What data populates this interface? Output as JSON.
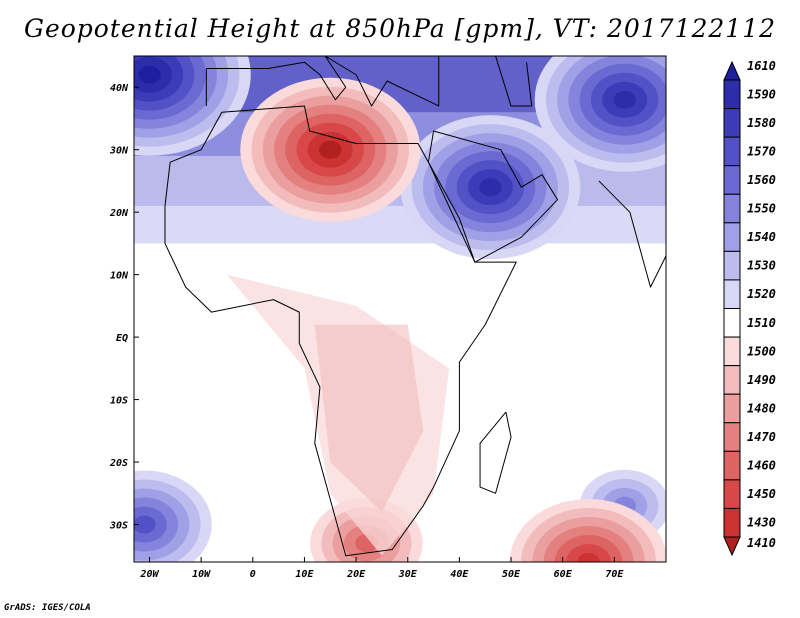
{
  "title": "Geopotential Height at 850hPa [gpm], VT: 2017122112",
  "credit": "GrADS: IGES/COLA",
  "map": {
    "variable": "Geopotential Height at 850hPa",
    "units": "gpm",
    "valid_time": "2017122112",
    "lon_range": [
      -23,
      80
    ],
    "lat_range": [
      -36,
      45
    ],
    "x_ticks": [
      {
        "lon": -20,
        "label": "20W"
      },
      {
        "lon": -10,
        "label": "10W"
      },
      {
        "lon": 0,
        "label": "0"
      },
      {
        "lon": 10,
        "label": "10E"
      },
      {
        "lon": 20,
        "label": "20E"
      },
      {
        "lon": 30,
        "label": "30E"
      },
      {
        "lon": 40,
        "label": "40E"
      },
      {
        "lon": 50,
        "label": "50E"
      },
      {
        "lon": 60,
        "label": "60E"
      },
      {
        "lon": 70,
        "label": "70E"
      }
    ],
    "y_ticks": [
      {
        "lat": 40,
        "label": "40N"
      },
      {
        "lat": 30,
        "label": "30N"
      },
      {
        "lat": 20,
        "label": "20N"
      },
      {
        "lat": 10,
        "label": "10N"
      },
      {
        "lat": 0,
        "label": "EQ"
      },
      {
        "lat": -10,
        "label": "10S"
      },
      {
        "lat": -20,
        "label": "20S"
      },
      {
        "lat": -30,
        "label": "30S"
      }
    ]
  },
  "colorbar": {
    "levels": [
      {
        "label": "1610",
        "color": "#1e1ea0"
      },
      {
        "label": "1590",
        "color": "#2d2dac"
      },
      {
        "label": "1580",
        "color": "#3c3cb8"
      },
      {
        "label": "1570",
        "color": "#5252c6"
      },
      {
        "label": "1560",
        "color": "#6a6ad2"
      },
      {
        "label": "1550",
        "color": "#8484dc"
      },
      {
        "label": "1540",
        "color": "#a0a0e6"
      },
      {
        "label": "1530",
        "color": "#bcbcef"
      },
      {
        "label": "1520",
        "color": "#d8d8f6"
      },
      {
        "label": "1510",
        "color": "#ffffff"
      },
      {
        "label": "1500",
        "color": "#fadada"
      },
      {
        "label": "1490",
        "color": "#f2bcbc"
      },
      {
        "label": "1480",
        "color": "#ea9e9e"
      },
      {
        "label": "1470",
        "color": "#e48080"
      },
      {
        "label": "1460",
        "color": "#de6464"
      },
      {
        "label": "1450",
        "color": "#d84848"
      },
      {
        "label": "1430",
        "color": "#cc3232"
      },
      {
        "label": "1410",
        "color": "#b21f1f"
      }
    ]
  },
  "features": [
    {
      "kind": "high",
      "lon": -20,
      "lat": 42,
      "level": 1610
    },
    {
      "kind": "high",
      "lon": 46,
      "lat": 24,
      "level": 1590
    },
    {
      "kind": "high",
      "lon": 72,
      "lat": 38,
      "level": 1590
    },
    {
      "kind": "high",
      "lon": -21,
      "lat": -30,
      "level": 1570
    },
    {
      "kind": "high",
      "lon": 72,
      "lat": -27,
      "level": 1550
    },
    {
      "kind": "low",
      "lon": 15,
      "lat": 30,
      "level": 1440
    },
    {
      "kind": "low",
      "lon": 22,
      "lat": -33,
      "level": 1460
    },
    {
      "kind": "low",
      "lon": 65,
      "lat": -36,
      "level": 1430
    }
  ]
}
